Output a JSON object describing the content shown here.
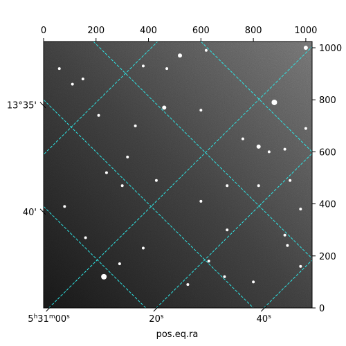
{
  "chart_data": {
    "type": "image",
    "title": "",
    "image_kind": "astronomical grayscale sky image with star field",
    "pixel_axes": {
      "x": {
        "ticks": [
          0,
          200,
          400,
          600,
          800,
          1000
        ],
        "labels": [
          "0",
          "200",
          "400",
          "600",
          "800",
          "1000"
        ],
        "range": [
          0,
          1024
        ]
      },
      "y": {
        "ticks": [
          0,
          200,
          400,
          600,
          800,
          1000
        ],
        "labels": [
          "0",
          "200",
          "400",
          "600",
          "800",
          "1000"
        ],
        "range": [
          0,
          1024
        ]
      }
    },
    "wcs_axes": {
      "xlabel": "pos.eq.ra",
      "ra_ticks": [
        {
          "x": 20,
          "label_hms": "5h31m00s"
        },
        {
          "x": 430,
          "label_hms": "20s"
        },
        {
          "x": 840,
          "label_hms": "40s"
        }
      ],
      "dec_ticks": [
        {
          "y": 780,
          "label": "13°35'"
        },
        {
          "y": 370,
          "label": "40'"
        }
      ]
    },
    "grid": {
      "on": true,
      "color": "#2ee6e6",
      "style": "dashed",
      "lines_a": [
        [
          [
            -200,
            390
          ],
          [
            1024,
            1612
          ]
        ],
        [
          [
            20,
            0
          ],
          [
            1024,
            1004
          ]
        ],
        [
          [
            430,
            0
          ],
          [
            1024,
            594
          ]
        ],
        [
          [
            840,
            0
          ],
          [
            1024,
            184
          ]
        ]
      ],
      "lines_b": [
        [
          [
            0,
            390
          ],
          [
            390,
            0
          ]
        ],
        [
          [
            0,
            800
          ],
          [
            800,
            0
          ]
        ],
        [
          [
            190,
            1024
          ],
          [
            1024,
            190
          ]
        ],
        [
          [
            600,
            1024
          ],
          [
            1024,
            600
          ]
        ]
      ]
    },
    "stars": [
      [
        230,
        120,
        4
      ],
      [
        1000,
        1000,
        3
      ],
      [
        880,
        790,
        4
      ],
      [
        320,
        580,
        2
      ],
      [
        460,
        770,
        3
      ],
      [
        150,
        880,
        2
      ],
      [
        820,
        620,
        3
      ],
      [
        760,
        650,
        2
      ],
      [
        520,
        970,
        3
      ],
      [
        620,
        990,
        2
      ],
      [
        240,
        520,
        2
      ],
      [
        430,
        490,
        2
      ],
      [
        300,
        470,
        2
      ],
      [
        600,
        410,
        2
      ],
      [
        80,
        390,
        2
      ],
      [
        160,
        270,
        2
      ],
      [
        290,
        170,
        2
      ],
      [
        380,
        230,
        2
      ],
      [
        700,
        470,
        2
      ],
      [
        820,
        470,
        2
      ],
      [
        940,
        490,
        2
      ],
      [
        980,
        380,
        2
      ],
      [
        920,
        280,
        2
      ],
      [
        700,
        300,
        2
      ],
      [
        630,
        180,
        2
      ],
      [
        550,
        90,
        2
      ],
      [
        690,
        120,
        2
      ],
      [
        800,
        100,
        2
      ],
      [
        930,
        240,
        2
      ],
      [
        980,
        160,
        2
      ],
      [
        110,
        860,
        2
      ],
      [
        60,
        920,
        2
      ],
      [
        470,
        920,
        2
      ],
      [
        380,
        930,
        2
      ],
      [
        920,
        610,
        2
      ],
      [
        1000,
        690,
        2
      ],
      [
        860,
        600,
        2
      ],
      [
        600,
        760,
        2
      ],
      [
        350,
        700,
        2
      ],
      [
        210,
        740,
        2
      ]
    ]
  }
}
